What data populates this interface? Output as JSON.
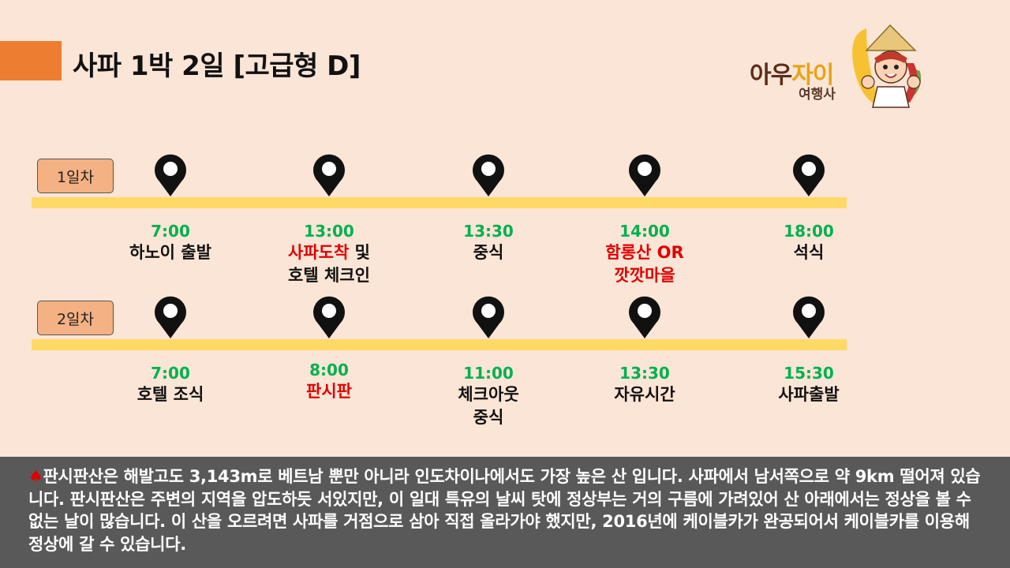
{
  "title": "사파 1박 2일 [고급형 D]",
  "logo": {
    "name_part1": "아우",
    "name_part2": "자이",
    "subtitle": "여행사"
  },
  "days": [
    {
      "label": "1일차",
      "stops": [
        {
          "time": "7:00",
          "desc": [
            {
              "t": "하노이 출발",
              "red": false
            }
          ]
        },
        {
          "time": "13:00",
          "desc": [
            {
              "t": "사파도착",
              "red": true
            },
            {
              "t": " 및",
              "red": false
            },
            {
              "t": "\n호텔 체크인",
              "red": false
            }
          ]
        },
        {
          "time": "13:30",
          "desc": [
            {
              "t": "중식",
              "red": false
            }
          ]
        },
        {
          "time": "14:00",
          "desc": [
            {
              "t": "함롱산 OR\n깟깟마을",
              "red": true
            }
          ]
        },
        {
          "time": "18:00",
          "desc": [
            {
              "t": "석식",
              "red": false
            }
          ]
        }
      ]
    },
    {
      "label": "2일차",
      "stops": [
        {
          "time": "7:00",
          "desc": [
            {
              "t": "호텔 조식",
              "red": false
            }
          ]
        },
        {
          "time": "8:00",
          "desc": [
            {
              "t": "판시판",
              "red": true
            }
          ]
        },
        {
          "time": "11:00",
          "desc": [
            {
              "t": "체크아웃\n중식",
              "red": false
            }
          ]
        },
        {
          "time": "13:30",
          "desc": [
            {
              "t": "자유시간",
              "red": false
            }
          ]
        },
        {
          "time": "15:30",
          "desc": [
            {
              "t": "사파출발",
              "red": false
            }
          ]
        }
      ]
    }
  ],
  "footer": {
    "icon": "spade-icon",
    "text": "판시판산은 해발고도 3,143m로 베트남 뿐만 아니라 인도차이나에서도 가장 높은 산 입니다.  사파에서 남서쪽으로 약 9km 떨어져 있습니다. 판시판산은 주변의 지역을 압도하듯 서있지만, 이 일대 특유의 날씨 탓에 정상부는 거의 구름에 가려있어 산 아래에서는 정상을 볼 수 없는 날이 많습니다. 이 산을 오르려면 사파를 거점으로 삼아 직접 올라가야 했지만, 2016년에 케이블카가 완공되어서 케이블카를 이용해 정상에 갈 수 있습니다."
  },
  "colors": {
    "accent": "#ed7d31",
    "track": "#ffd966",
    "time": "#00b050",
    "highlight": "#e00000",
    "background": "#fbe5d6"
  }
}
